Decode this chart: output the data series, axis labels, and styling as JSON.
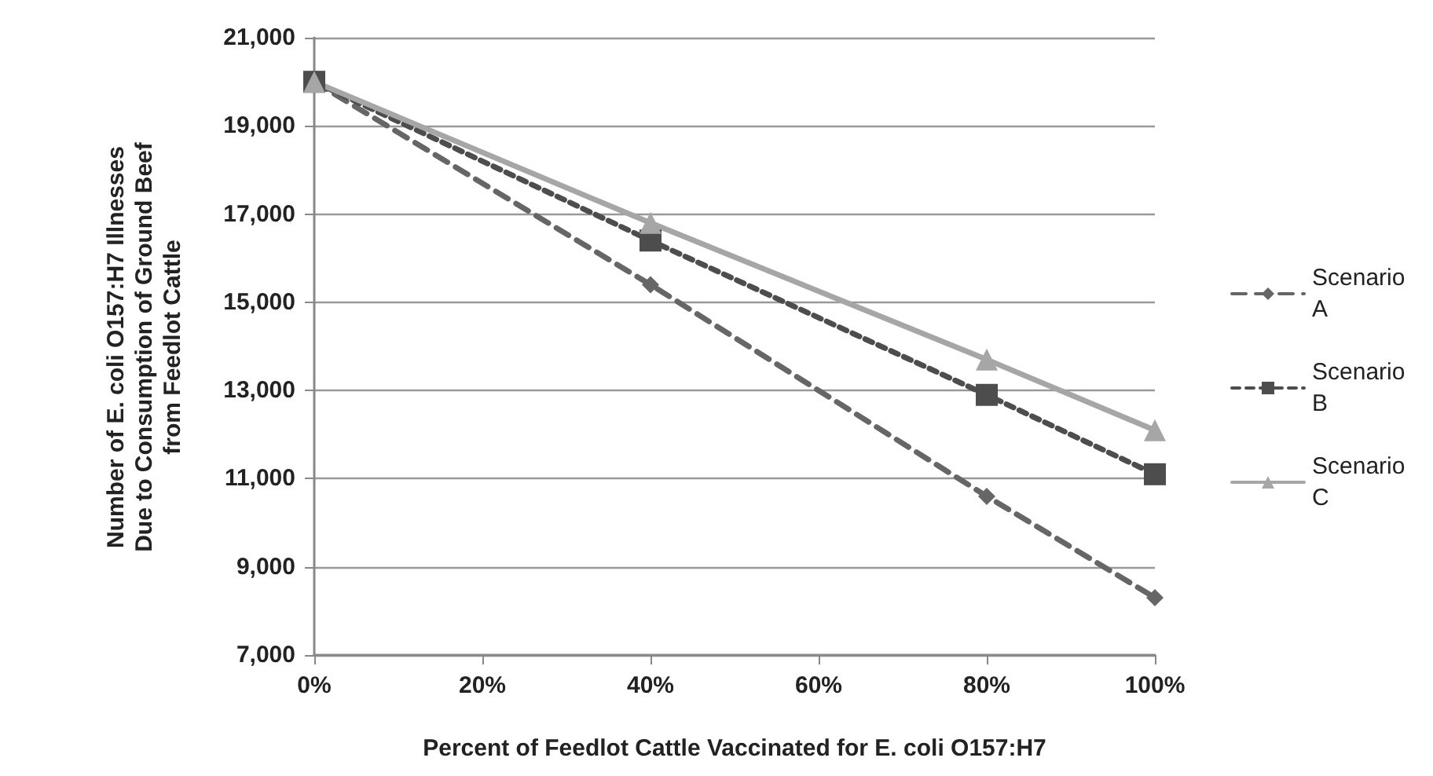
{
  "chart_data": {
    "type": "line",
    "xlabel": "Percent of Feedlot Cattle Vaccinated for E. coli O157:H7",
    "ylabel": "Number of E. coli O157:H7 Illnesses Due to Consumption of Ground Beef from Feedlot Cattle",
    "x": [
      0,
      40,
      80,
      100
    ],
    "series": [
      {
        "name": "Scenario A",
        "color": "#666666",
        "marker": "diamond",
        "line_style": "dashed",
        "values": [
          20000,
          15400,
          10600,
          8300
        ]
      },
      {
        "name": "Scenario B",
        "color": "#4d4d4d",
        "marker": "square",
        "line_style": "dotted",
        "values": [
          20000,
          16400,
          12900,
          11100
        ]
      },
      {
        "name": "Scenario C",
        "color": "#a6a6a6",
        "marker": "triangle",
        "line_style": "solid",
        "values": [
          20000,
          16800,
          13700,
          12100
        ]
      }
    ],
    "xlim": [
      0,
      100
    ],
    "xticks": [
      {
        "value": 0,
        "label": "0%"
      },
      {
        "value": 20,
        "label": "20%"
      },
      {
        "value": 40,
        "label": "40%"
      },
      {
        "value": 60,
        "label": "60%"
      },
      {
        "value": 80,
        "label": "80%"
      },
      {
        "value": 100,
        "label": "100%"
      }
    ],
    "ylim": [
      7000,
      21000
    ],
    "yticks": [
      {
        "value": 7000,
        "label": "7,000"
      },
      {
        "value": 9000,
        "label": "9,000"
      },
      {
        "value": 11000,
        "label": "11,000"
      },
      {
        "value": 13000,
        "label": "13,000"
      },
      {
        "value": 15000,
        "label": "15,000"
      },
      {
        "value": 17000,
        "label": "17,000"
      },
      {
        "value": 19000,
        "label": "19,000"
      },
      {
        "value": 21000,
        "label": "21,000"
      }
    ],
    "grid": "y",
    "legend": "right"
  }
}
